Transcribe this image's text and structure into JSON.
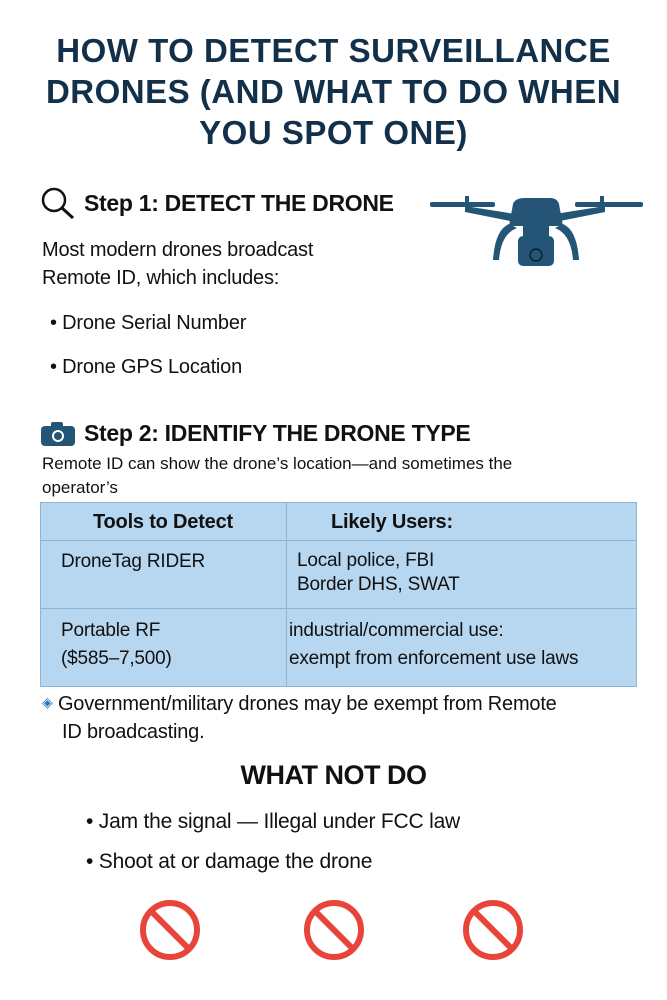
{
  "title": [
    "HOW TO DETECT SURVEILLANCE",
    "DRONES (AND WHAT TO DO WHEN",
    "YOU SPOT ONE)"
  ],
  "step1": {
    "icon": "magnifier-icon",
    "heading": "Step 1: DETECT THE DRONE",
    "intro": [
      "Most modern drones broadcast",
      "Remote ID, which includes:"
    ],
    "bullets": [
      "Drone Serial Number",
      "Drone GPS Location"
    ]
  },
  "step2": {
    "icon": "camera-icon",
    "heading": "Step 2: IDENTIFY THE DRONE TYPE",
    "intro": [
      "Remote ID can show the drone’s location—and sometimes the",
      "operator’s"
    ]
  },
  "table": {
    "headers": [
      "Tools to Detect",
      "Likely Users:"
    ],
    "rows": [
      {
        "tool": [
          "DroneTag RIDER"
        ],
        "users": [
          "Local police, FBI",
          "Border DHS, SWAT"
        ]
      },
      {
        "tool": [
          "Portable RF",
          "($585–7,500)"
        ],
        "users": [
          "industrial/commercial use:",
          "exempt from enforcement use laws"
        ]
      }
    ]
  },
  "note": {
    "icon": "diamond-icon",
    "text": [
      "Government/military drones may be exempt from Remote",
      "ID broadcasting."
    ]
  },
  "not_do": {
    "heading": "WHAT NOT DO",
    "bullets": [
      "Jam the signal — Illegal under FCC law",
      "Shoot at or damage the drone"
    ]
  },
  "colors": {
    "title": "#123049",
    "drone": "#245577",
    "table_bg": "#b7d7f1",
    "prohibited": "#e8453a"
  }
}
